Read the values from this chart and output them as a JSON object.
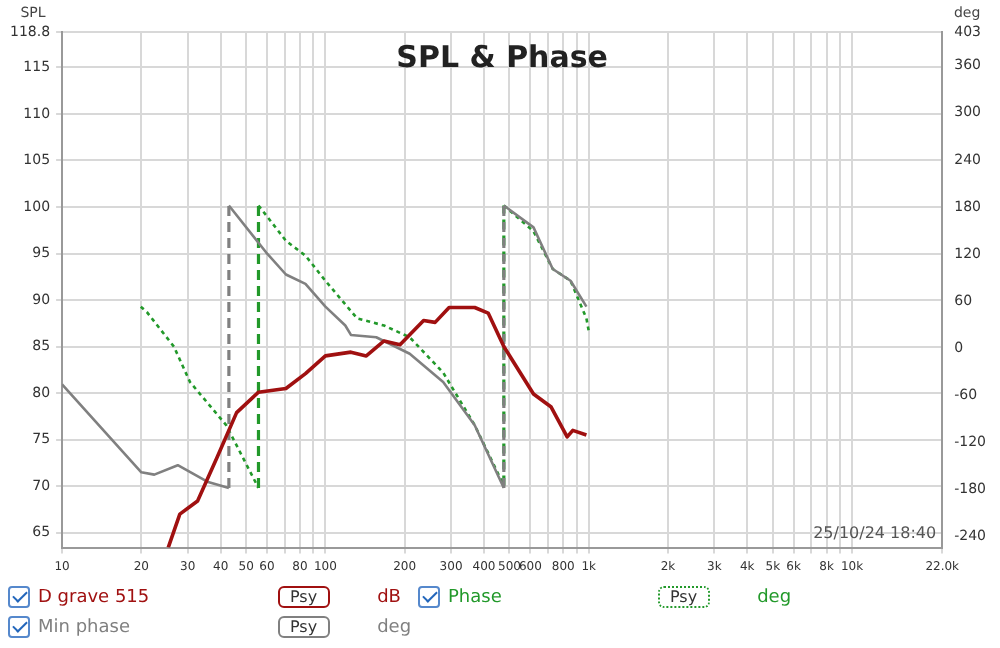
{
  "chart_data": {
    "type": "line",
    "title": "SPL & Phase",
    "ylabel": "SPL",
    "y2label": "deg",
    "xlim": [
      10,
      22000
    ],
    "xticks": [
      10,
      20,
      30,
      40,
      50,
      60,
      {
        "value": 70,
        "label": null
      },
      80,
      {
        "value": 90,
        "label": null
      },
      100,
      200,
      300,
      400,
      500,
      600,
      {
        "value": 700,
        "label": null
      },
      800,
      {
        "value": 900,
        "label": null
      },
      {
        "value": 1000,
        "label": "1k"
      },
      {
        "value": 2000,
        "label": "2k"
      },
      {
        "value": 3000,
        "label": "3k"
      },
      {
        "value": 4000,
        "label": "4k"
      },
      {
        "value": 5000,
        "label": "5k"
      },
      {
        "value": 6000,
        "label": "6k"
      },
      {
        "value": 7000,
        "label": null
      },
      {
        "value": 8000,
        "label": "8k"
      },
      {
        "value": 9000,
        "label": null
      },
      {
        "value": 10000,
        "label": "10k"
      },
      {
        "value": 22000,
        "label": "22.0k"
      }
    ],
    "ylim": [
      63.4,
      118.8
    ],
    "yticks": [
      65,
      70,
      75,
      80,
      85,
      90,
      95,
      100,
      105,
      110,
      115,
      118.8
    ],
    "y2lim": [
      -254,
      403
    ],
    "y2ticks": [
      -240,
      -180,
      -120,
      -60,
      0,
      60,
      120,
      180,
      240,
      300,
      360,
      403
    ],
    "grid": true,
    "log": "x",
    "legend": "bottom",
    "marker": "none",
    "series": [
      {
        "name": "D grave 515",
        "color": "#a01010",
        "line_style": "solid",
        "x": [
          25.3,
          28,
          32.7,
          38.8,
          46,
          55.7,
          70.8,
          84,
          100,
          125,
          143,
          167,
          192,
          236,
          261,
          295,
          369,
          415,
          476,
          617,
          720,
          828,
          870,
          980
        ],
        "values": [
          63.4,
          67.0,
          68.4,
          73.1,
          77.9,
          80.1,
          80.5,
          82.1,
          84.0,
          84.4,
          84.0,
          85.6,
          85.2,
          87.8,
          87.6,
          89.2,
          89.2,
          88.6,
          85.0,
          79.9,
          78.5,
          75.3,
          76.0,
          75.5
        ]
      },
      {
        "name": "Min phase",
        "color": "#808080",
        "line_style": "solid",
        "axis": "y2",
        "x": [
          10,
          20,
          22.4,
          27.5,
          35.6,
          43,
          43,
          59.6,
          70.8,
          84,
          100,
          119,
          125,
          156,
          209,
          280,
          369,
          476,
          476,
          617,
          730,
          853,
          980
        ],
        "values": [
          -46,
          -158,
          -161,
          -149,
          -170,
          -178,
          182,
          122,
          94,
          82,
          53,
          29,
          17,
          14,
          -7,
          -43,
          -98,
          -178,
          182,
          154,
          101,
          86,
          53
        ]
      },
      {
        "name": "Phase",
        "color": "#22992a",
        "line_style": "dotted",
        "axis": "y2",
        "x": [
          19.9,
          21,
          26.6,
          30.6,
          42,
          55.7,
          55.7,
          70.8,
          84,
          100,
          132,
          167,
          209,
          280,
          369,
          476,
          476,
          617,
          730,
          853,
          980,
          1000
        ],
        "values": [
          53,
          46,
          2,
          -43,
          -98,
          -178,
          182,
          137,
          118,
          86,
          38,
          29,
          14,
          -31,
          -98,
          -175,
          182,
          149,
          101,
          86,
          38,
          22
        ]
      }
    ],
    "annotations": [
      "25/10/24 18:40",
      "Psy",
      "dB",
      "Psy",
      "deg",
      "Psy",
      "deg"
    ]
  }
}
